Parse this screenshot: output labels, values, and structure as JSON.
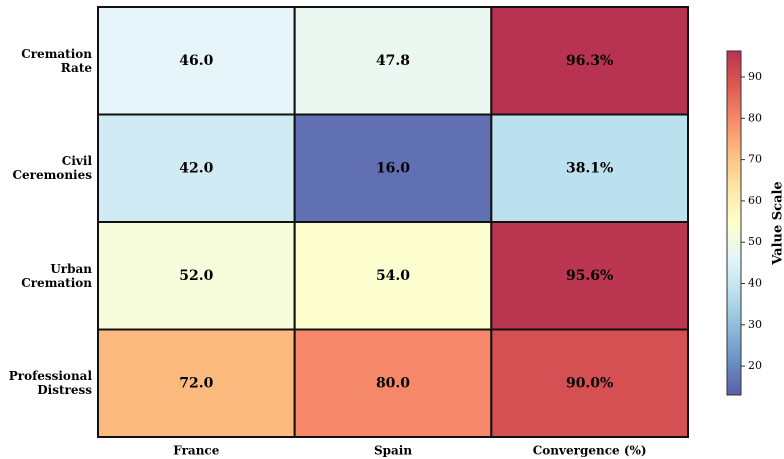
{
  "chart_data": {
    "type": "heatmap",
    "rows": [
      "Cremation Rate",
      "Civil Ceremonies",
      "Urban Cremation",
      "Professional Distress"
    ],
    "categories": [
      "France",
      "Spain",
      "Convergence (%)"
    ],
    "values": [
      [
        46.0,
        47.8,
        96.3
      ],
      [
        42.0,
        16.0,
        38.1
      ],
      [
        52.0,
        54.0,
        95.6
      ],
      [
        72.0,
        80.0,
        90.0
      ]
    ],
    "value_labels": [
      [
        "46.0",
        "47.8",
        "96.3%"
      ],
      [
        "42.0",
        "16.0",
        "38.1%"
      ],
      [
        "52.0",
        "54.0",
        "95.6%"
      ],
      [
        "72.0",
        "80.0",
        "90.0%"
      ]
    ],
    "colormap": [
      "#313695",
      "#4575b4",
      "#74add1",
      "#abd9e9",
      "#e0f3f8",
      "#ffffbf",
      "#fee090",
      "#fdae61",
      "#f46d43",
      "#d73027",
      "#a50026"
    ],
    "colorbar": {
      "label": "Value Scale",
      "clim": [
        13,
        96.3
      ],
      "ticks": [
        20,
        30,
        40,
        50,
        60,
        70,
        80,
        90
      ]
    }
  }
}
